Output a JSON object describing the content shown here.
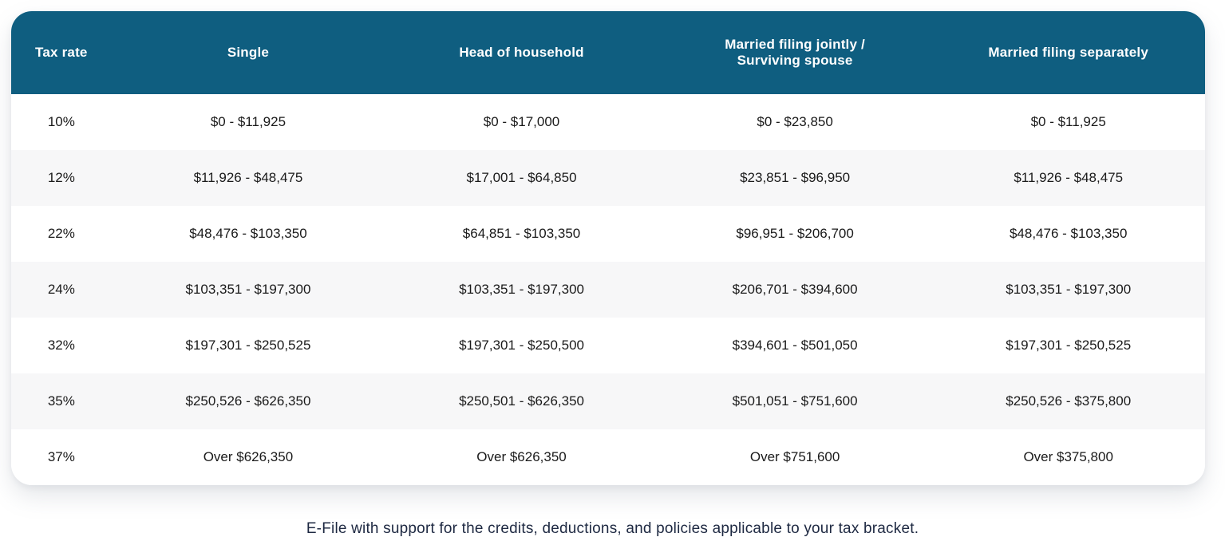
{
  "chart_data": {
    "type": "table",
    "columns": [
      "Tax rate",
      "Single",
      "Head of household",
      "Married filing jointly /\nSurviving spouse",
      "Married filing separately"
    ],
    "rows": [
      [
        "10%",
        "$0 - $11,925",
        "$0 - $17,000",
        "$0 - $23,850",
        "$0 - $11,925"
      ],
      [
        "12%",
        "$11,926 - $48,475",
        "$17,001 - $64,850",
        "$23,851 - $96,950",
        "$11,926 - $48,475"
      ],
      [
        "22%",
        "$48,476 - $103,350",
        "$64,851 - $103,350",
        "$96,951 - $206,700",
        "$48,476 - $103,350"
      ],
      [
        "24%",
        "$103,351 - $197,300",
        "$103,351 - $197,300",
        "$206,701 - $394,600",
        "$103,351 - $197,300"
      ],
      [
        "32%",
        "$197,301 - $250,525",
        "$197,301 - $250,500",
        "$394,601 - $501,050",
        "$197,301 - $250,525"
      ],
      [
        "35%",
        "$250,526 - $626,350",
        "$250,501 - $626,350",
        "$501,051 - $751,600",
        "$250,526 - $375,800"
      ],
      [
        "37%",
        "Over $626,350",
        "Over $626,350",
        "Over $751,600",
        "Over $375,800"
      ]
    ]
  },
  "caption": "E-File with support for the credits, deductions, and policies applicable to your tax bracket.",
  "colors": {
    "header_bg": "#0f5e80",
    "header_text": "#ffffff",
    "row_alt_bg": "#f7f7f8",
    "cell_text": "#1a1a1a",
    "caption_text": "#1e2942"
  }
}
